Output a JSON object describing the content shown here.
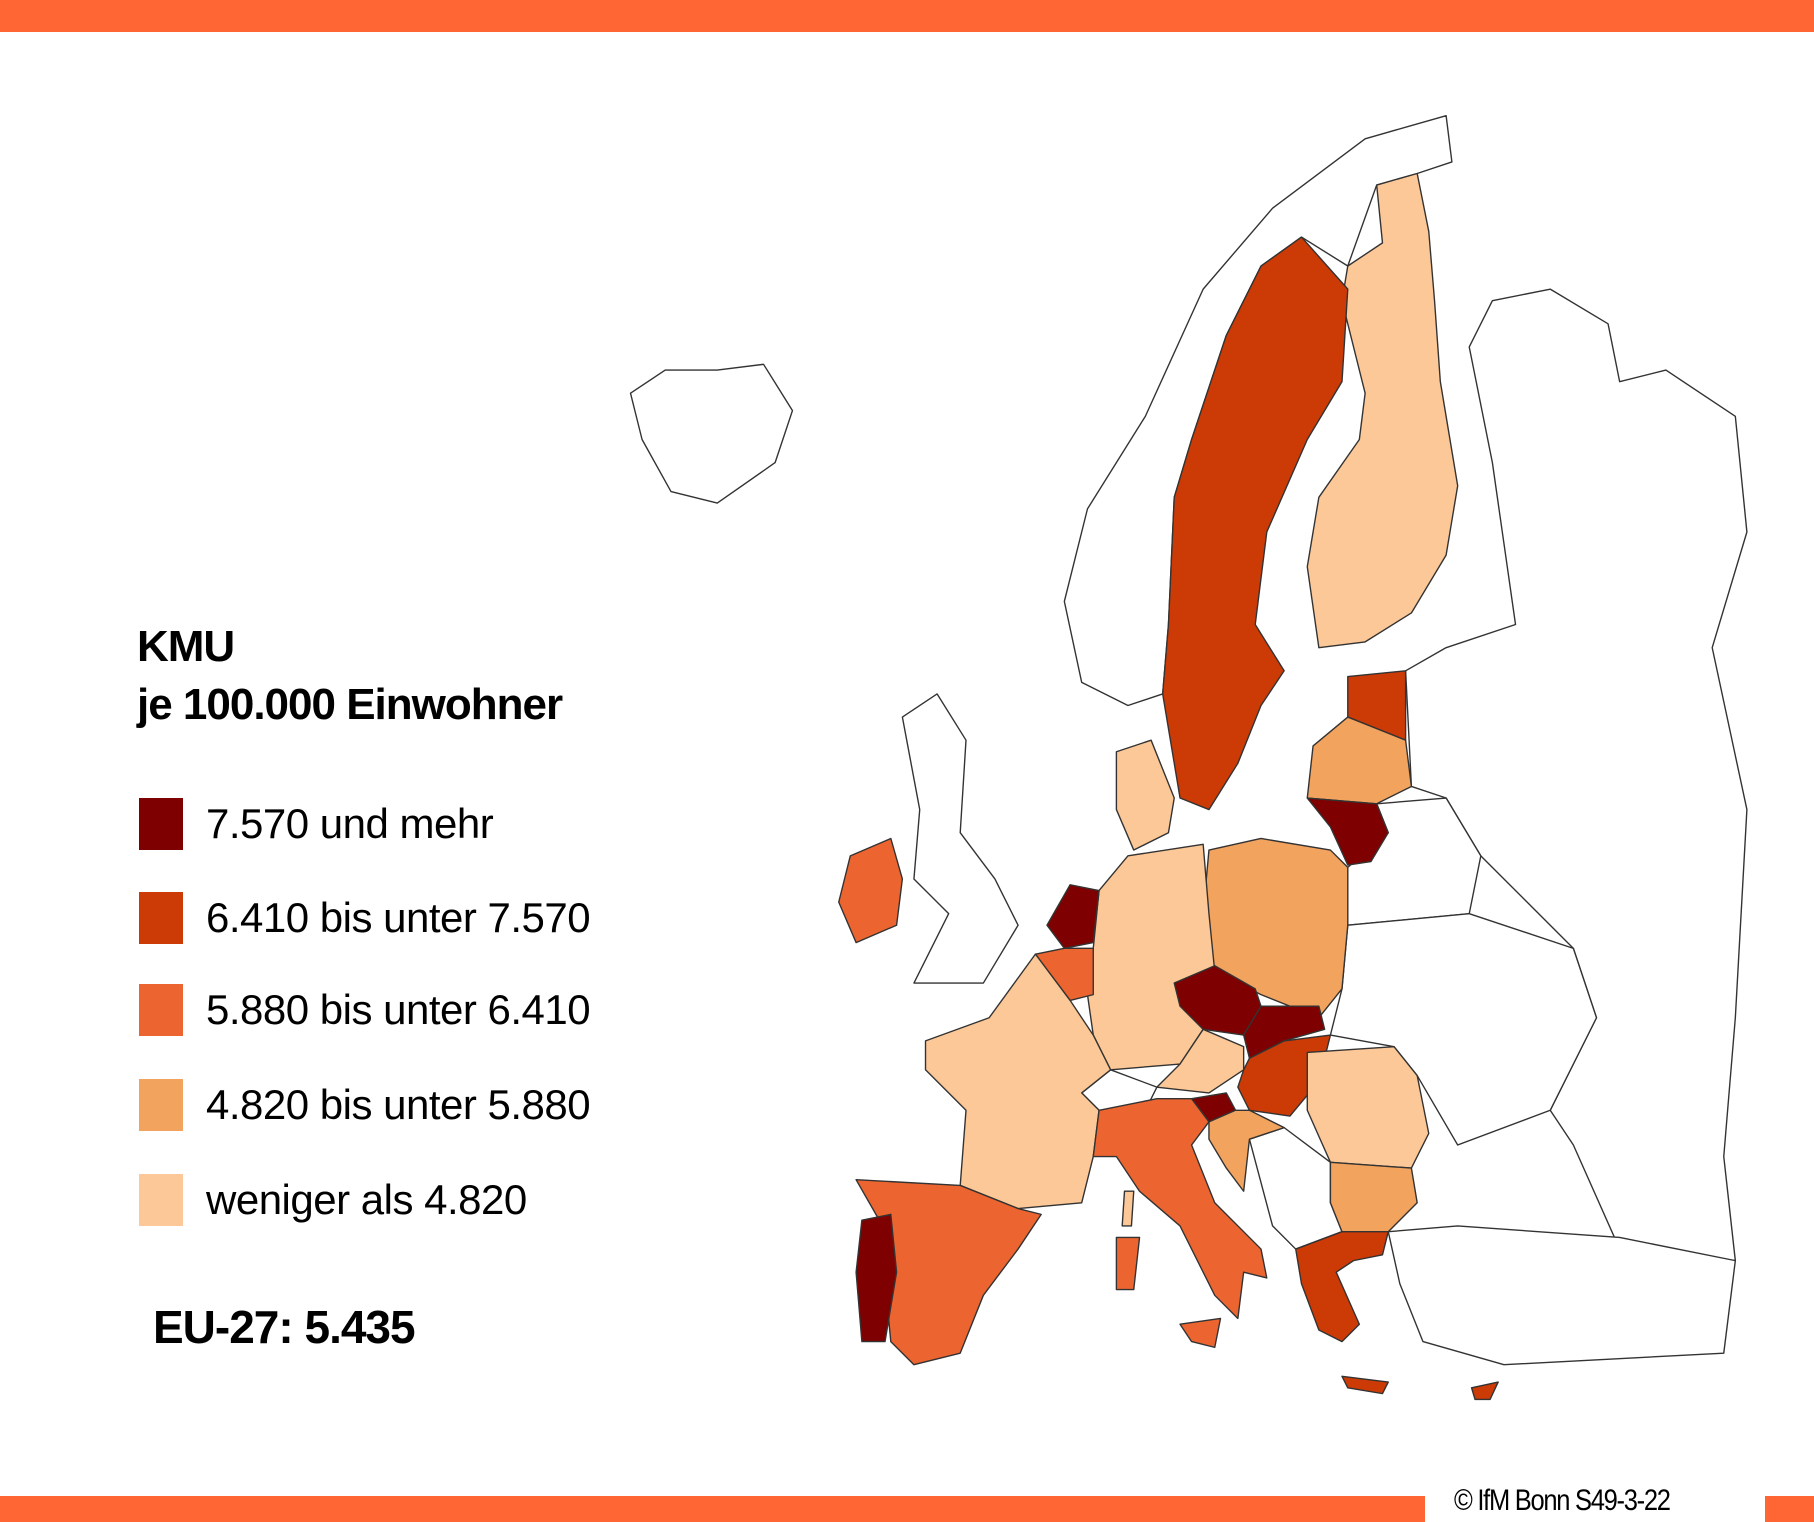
{
  "colors": {
    "bar": "#ff6633",
    "classes": [
      "#7f0000",
      "#cc3a06",
      "#ec6530",
      "#f2a35e",
      "#fdc897"
    ],
    "no_data": "#ffffff"
  },
  "legend": {
    "title_line1": "KMU",
    "title_line2": "je 100.000 Einwohner",
    "items": [
      {
        "label": "7.570 und mehr"
      },
      {
        "label": "6.410 bis unter 7.570"
      },
      {
        "label": "5.880 bis unter 6.410"
      },
      {
        "label": "4.820 bis unter 5.880"
      },
      {
        "label": "weniger als 4.820"
      }
    ]
  },
  "eu_average": "EU-27: 5.435",
  "footer": {
    "copyright": "© IfM  Bonn S49-3-22"
  },
  "choropleth": {
    "NL": 0,
    "CZ": 0,
    "SK": 0,
    "LT": 0,
    "PT": 0,
    "SI": 0,
    "SE": 1,
    "EE": 1,
    "HU": 1,
    "GR": 1,
    "CY": 1,
    "IE": 2,
    "BE": 2,
    "IT": 2,
    "ES": 2,
    "PL": 3,
    "LV": 3,
    "HR": 3,
    "BG": 3,
    "FI": 4,
    "DE": 4,
    "FR": 4,
    "AT": 4,
    "RO": 4,
    "DK": 4
  }
}
